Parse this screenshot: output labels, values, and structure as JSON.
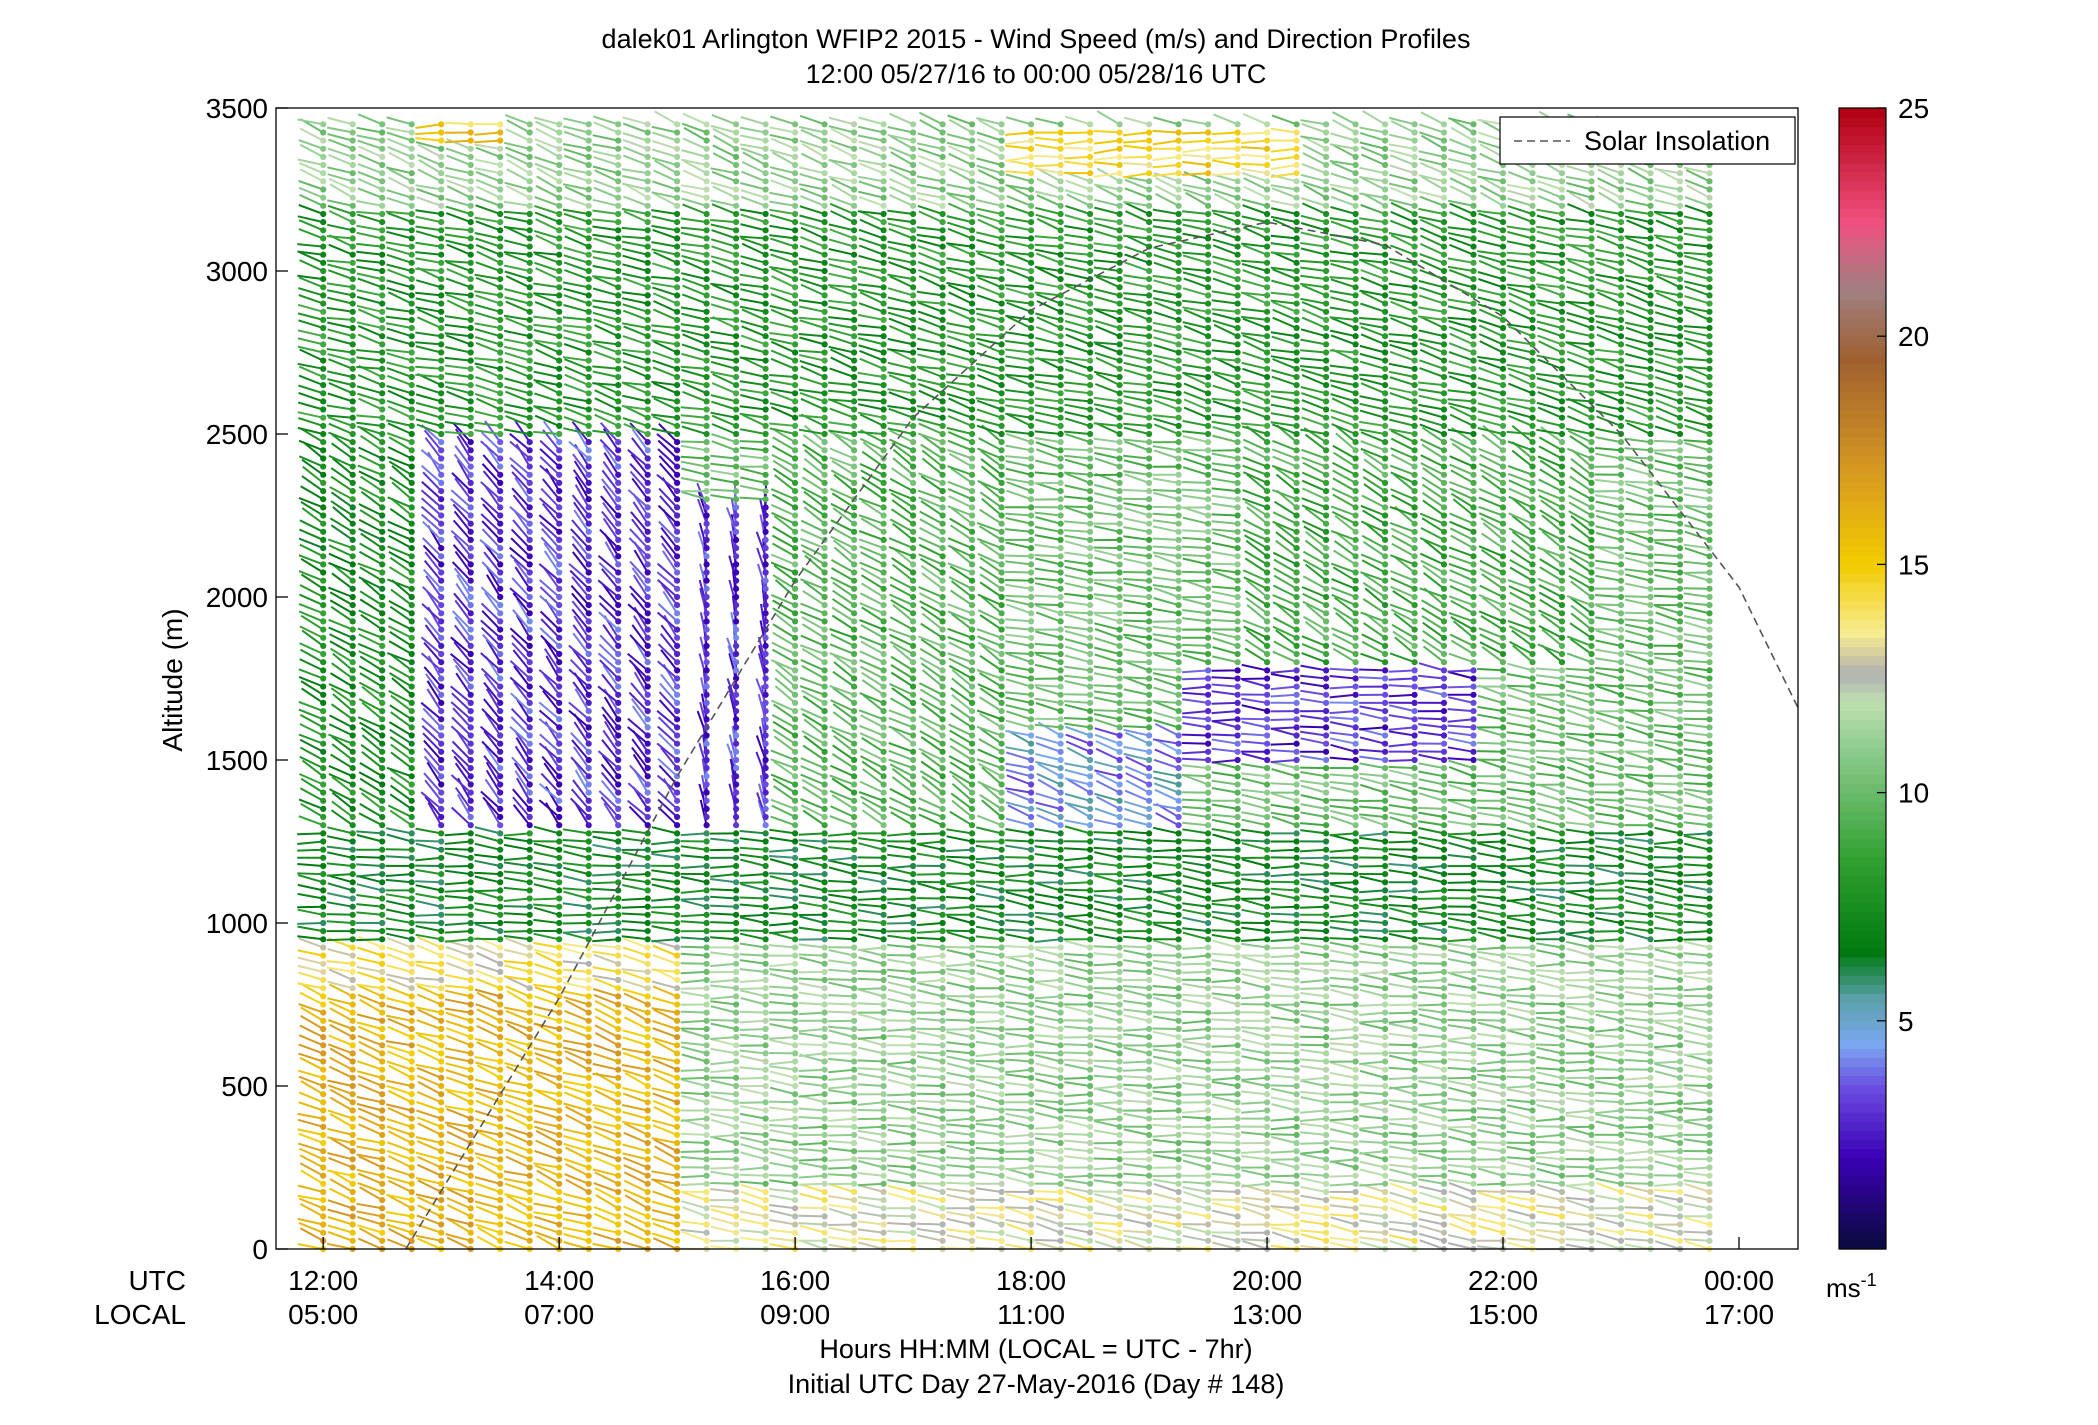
{
  "chart_data": {
    "type": "wind-barb-profile",
    "title": "dalek01 Arlington WFIP2 2015 - Wind Speed (m/s) and Direction Profiles",
    "subtitle": "12:00 05/27/16 to 00:00 05/28/16  UTC",
    "ylabel": "Altitude (m)",
    "xlabel": "Hours HH:MM  (LOCAL = UTC - 7hr)",
    "xlabel2": "Initial UTC Day 27-May-2016 (Day # 148)",
    "row_label_utc": "UTC",
    "row_label_local": "LOCAL",
    "ylim": [
      0,
      3500
    ],
    "yticks": [
      "0",
      "500",
      "1000",
      "1500",
      "2000",
      "2500",
      "3000",
      "3500"
    ],
    "xlim_hours": [
      11.6,
      24.5
    ],
    "xticks_utc": [
      "12:00",
      "14:00",
      "16:00",
      "18:00",
      "20:00",
      "22:00",
      "00:00"
    ],
    "xticks_local": [
      "05:00",
      "07:00",
      "09:00",
      "11:00",
      "13:00",
      "15:00",
      "17:00"
    ],
    "xtick_hours": [
      12,
      14,
      16,
      18,
      20,
      22,
      24
    ],
    "legend": {
      "label": "Solar Insolation",
      "placement": "top-right",
      "style": "dashed gray line"
    },
    "colorbar": {
      "unit": "ms",
      "unit_superscript": "-1",
      "range": [
        0,
        25
      ],
      "tick_labels": [
        "5",
        "10",
        "15",
        "20",
        "25"
      ],
      "tick_values": [
        5,
        10,
        15,
        20,
        25
      ],
      "colors": [
        {
          "v": 0,
          "c": "#0a0a3c"
        },
        {
          "v": 2,
          "c": "#3a00b4"
        },
        {
          "v": 3.5,
          "c": "#6a4ae0"
        },
        {
          "v": 4.5,
          "c": "#7aa8f0"
        },
        {
          "v": 5.5,
          "c": "#5aa0a8"
        },
        {
          "v": 6.5,
          "c": "#007a10"
        },
        {
          "v": 8.5,
          "c": "#30a030"
        },
        {
          "v": 11,
          "c": "#90cc90"
        },
        {
          "v": 12,
          "c": "#c0e0b0"
        },
        {
          "v": 12.6,
          "c": "#b0b0b0"
        },
        {
          "v": 13.5,
          "c": "#f8ec90"
        },
        {
          "v": 15,
          "c": "#f2cc00"
        },
        {
          "v": 17,
          "c": "#d89a20"
        },
        {
          "v": 19.5,
          "c": "#a06030"
        },
        {
          "v": 21,
          "c": "#a08080"
        },
        {
          "v": 22.5,
          "c": "#f05080"
        },
        {
          "v": 25,
          "c": "#b00010"
        }
      ]
    },
    "barb_times_hours_range": [
      12.0,
      23.95
    ],
    "barb_time_step_hours": 0.25,
    "barb_levels_m": [
      0,
      3450
    ],
    "barb_level_step_m": 25,
    "wind_speed_regions": [
      {
        "t": [
          12.0,
          15.1
        ],
        "z": [
          0,
          800
        ],
        "speed": 16,
        "direction_deg": 290
      },
      {
        "t": [
          12.0,
          15.1
        ],
        "z": [
          800,
          950
        ],
        "speed": 13.8,
        "direction_deg": 285
      },
      {
        "t": [
          15.1,
          24.0
        ],
        "z": [
          0,
          200
        ],
        "speed": 13,
        "direction_deg": 280
      },
      {
        "t": [
          15.1,
          24.0
        ],
        "z": [
          200,
          950
        ],
        "speed": 11,
        "direction_deg": 275
      },
      {
        "t": [
          12.0,
          24.0
        ],
        "z": [
          950,
          1300
        ],
        "speed": 7,
        "direction_deg": 275
      },
      {
        "t": [
          12.0,
          13.0
        ],
        "z": [
          1300,
          2500
        ],
        "speed": 7.5,
        "direction_deg": 300
      },
      {
        "t": [
          13.0,
          15.2
        ],
        "z": [
          1300,
          2500
        ],
        "speed": 3,
        "direction_deg": 320
      },
      {
        "t": [
          15.2,
          16.0
        ],
        "z": [
          1300,
          2300
        ],
        "speed": 3,
        "direction_deg": 350
      },
      {
        "t": [
          16.0,
          18.0
        ],
        "z": [
          1300,
          2600
        ],
        "speed": 9.5,
        "direction_deg": 300
      },
      {
        "t": [
          18.0,
          19.5
        ],
        "z": [
          1300,
          1600
        ],
        "speed": 4.5,
        "direction_deg": 290
      },
      {
        "t": [
          19.5,
          22.0
        ],
        "z": [
          1500,
          1800
        ],
        "speed": 3,
        "direction_deg": 275
      },
      {
        "t": [
          20.0,
          23.0
        ],
        "z": [
          1800,
          2500
        ],
        "speed": 9,
        "direction_deg": 300
      },
      {
        "t": [
          12.0,
          24.0
        ],
        "z": [
          2500,
          3200
        ],
        "speed": 8,
        "direction_deg": 285
      },
      {
        "t": [
          12.0,
          24.0
        ],
        "z": [
          3200,
          3500
        ],
        "speed": 11,
        "direction_deg": 290
      },
      {
        "t": [
          12.8,
          13.7
        ],
        "z": [
          3400,
          3500
        ],
        "speed": 15,
        "direction_deg": 270
      },
      {
        "t": [
          17.8,
          20.5
        ],
        "z": [
          3300,
          3450
        ],
        "speed": 14.5,
        "direction_deg": 270
      }
    ],
    "solar_insolation_curve": [
      {
        "t": 12.7,
        "z": 0
      },
      {
        "t": 14.0,
        "z": 770
      },
      {
        "t": 15.0,
        "z": 1450
      },
      {
        "t": 16.0,
        "z": 2050
      },
      {
        "t": 17.0,
        "z": 2550
      },
      {
        "t": 18.0,
        "z": 2880
      },
      {
        "t": 19.0,
        "z": 3070
      },
      {
        "t": 20.0,
        "z": 3150
      },
      {
        "t": 21.0,
        "z": 3080
      },
      {
        "t": 22.0,
        "z": 2860
      },
      {
        "t": 23.0,
        "z": 2500
      },
      {
        "t": 24.0,
        "z": 2030
      },
      {
        "t": 24.5,
        "z": 1660
      }
    ]
  }
}
